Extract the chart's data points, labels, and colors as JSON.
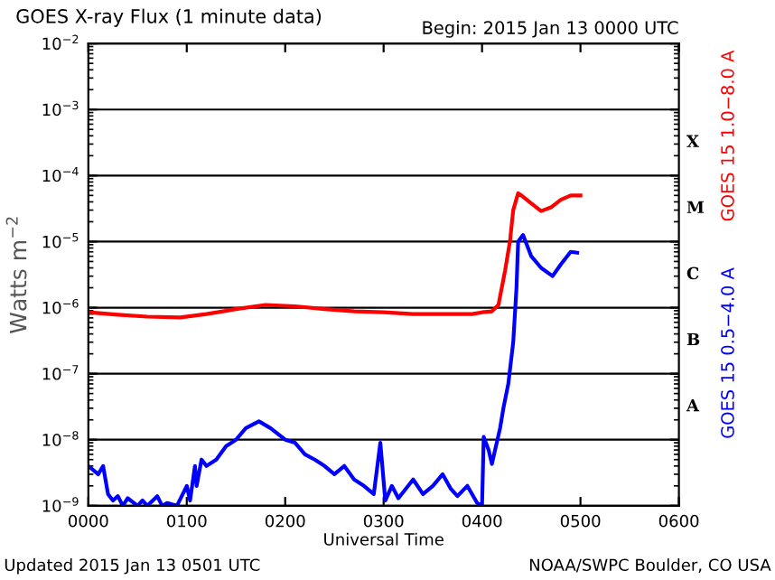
{
  "chart_data": {
    "type": "line",
    "title": "GOES X-ray Flux (1 minute data)",
    "subtitle": "Begin: 2015 Jan 13 0000 UTC",
    "xlabel": "Universal Time",
    "ylabel": "Watts m$^{−2}$",
    "log": "y",
    "grid": "y",
    "legend": false,
    "xlim": [
      "2015-01-13T00:00",
      "2015-01-13T06:00"
    ],
    "xticks": [
      {
        "value": "2015-01-13T00:00",
        "label": "0000"
      },
      {
        "value": "2015-01-13T01:00",
        "label": "0100"
      },
      {
        "value": "2015-01-13T02:00",
        "label": "0200"
      },
      {
        "value": "2015-01-13T03:00",
        "label": "0300"
      },
      {
        "value": "2015-01-13T04:00",
        "label": "0400"
      },
      {
        "value": "2015-01-13T05:00",
        "label": "0500"
      },
      {
        "value": "2015-01-13T06:00",
        "label": "0600"
      }
    ],
    "ylim": [
      1e-09,
      0.01
    ],
    "yticks": [
      {
        "value": 1e-09,
        "label": "10$^{−9}$"
      },
      {
        "value": 1e-08,
        "label": "10$^{−8}$"
      },
      {
        "value": 1e-07,
        "label": "10$^{−7}$"
      },
      {
        "value": 1e-06,
        "label": "10$^{−6}$"
      },
      {
        "value": 1e-05,
        "label": "10$^{−5}$"
      },
      {
        "value": 0.0001,
        "label": "10$^{−4}$"
      },
      {
        "value": 0.001,
        "label": "10$^{−3}$"
      },
      {
        "value": 0.01,
        "label": "10$^{−2}$"
      }
    ],
    "series": [
      {
        "name": "GOES 15 1.0−8.0 A",
        "color": "#ff0000",
        "x": [
          "2015-01-13T00:00",
          "2015-01-13T00:18",
          "2015-01-13T00:36",
          "2015-01-13T00:56",
          "2015-01-13T01:12",
          "2015-01-13T01:30",
          "2015-01-13T01:48",
          "2015-01-13T02:06",
          "2015-01-13T02:24",
          "2015-01-13T02:42",
          "2015-01-13T03:00",
          "2015-01-13T03:18",
          "2015-01-13T03:36",
          "2015-01-13T03:54",
          "2015-01-13T04:00",
          "2015-01-13T04:06",
          "2015-01-13T04:10",
          "2015-01-13T04:14",
          "2015-01-13T04:17",
          "2015-01-13T04:19",
          "2015-01-13T04:22",
          "2015-01-13T04:24",
          "2015-01-13T04:30",
          "2015-01-13T04:36",
          "2015-01-13T04:42",
          "2015-01-13T04:48",
          "2015-01-13T04:54",
          "2015-01-13T05:00"
        ],
        "values": [
          8.5e-07,
          7.8e-07,
          7.3e-07,
          7.1e-07,
          8e-07,
          9.5e-07,
          1.1e-06,
          1.05e-06,
          9.5e-07,
          8.8e-07,
          8.5e-07,
          8e-07,
          8e-07,
          8e-07,
          8.5e-07,
          8.8e-07,
          1.1e-06,
          3.6e-06,
          1e-05,
          3e-05,
          5.4e-05,
          5e-05,
          3.8e-05,
          2.9e-05,
          3.3e-05,
          4.3e-05,
          5e-05,
          5e-05
        ]
      },
      {
        "name": "GOES 15 0.5−4.0 A",
        "color": "#0000ff",
        "x": [
          "2015-01-13T00:00",
          "2015-01-13T00:06",
          "2015-01-13T00:09",
          "2015-01-13T00:12",
          "2015-01-13T00:15",
          "2015-01-13T00:18",
          "2015-01-13T00:21",
          "2015-01-13T00:24",
          "2015-01-13T00:30",
          "2015-01-13T00:33",
          "2015-01-13T00:36",
          "2015-01-13T00:42",
          "2015-01-13T00:45",
          "2015-01-13T00:48",
          "2015-01-13T00:54",
          "2015-01-13T01:00",
          "2015-01-13T01:02",
          "2015-01-13T01:05",
          "2015-01-13T01:06",
          "2015-01-13T01:09",
          "2015-01-13T01:12",
          "2015-01-13T01:18",
          "2015-01-13T01:24",
          "2015-01-13T01:30",
          "2015-01-13T01:36",
          "2015-01-13T01:44",
          "2015-01-13T01:51",
          "2015-01-13T02:00",
          "2015-01-13T02:06",
          "2015-01-13T02:12",
          "2015-01-13T02:18",
          "2015-01-13T02:24",
          "2015-01-13T02:30",
          "2015-01-13T02:36",
          "2015-01-13T02:42",
          "2015-01-13T02:48",
          "2015-01-13T02:54",
          "2015-01-13T02:58",
          "2015-01-13T03:01",
          "2015-01-13T03:05",
          "2015-01-13T03:09",
          "2015-01-13T03:18",
          "2015-01-13T03:24",
          "2015-01-13T03:30",
          "2015-01-13T03:36",
          "2015-01-13T03:41",
          "2015-01-13T03:45",
          "2015-01-13T03:51",
          "2015-01-13T03:57",
          "2015-01-13T04:00",
          "2015-01-13T04:01",
          "2015-01-13T04:04",
          "2015-01-13T04:06",
          "2015-01-13T04:11",
          "2015-01-13T04:13",
          "2015-01-13T04:16",
          "2015-01-13T04:19",
          "2015-01-13T04:21",
          "2015-01-13T04:22",
          "2015-01-13T04:25",
          "2015-01-13T04:30",
          "2015-01-13T04:36",
          "2015-01-13T04:43",
          "2015-01-13T04:48",
          "2015-01-13T04:54",
          "2015-01-13T04:58"
        ],
        "values": [
          4e-09,
          3e-09,
          4e-09,
          1.5e-09,
          1.2e-09,
          1.4e-09,
          1e-09,
          1.3e-09,
          1e-09,
          1.2e-09,
          1e-09,
          1.4e-09,
          1e-09,
          1.1e-09,
          1e-09,
          2e-09,
          1.2e-09,
          4e-09,
          2e-09,
          5e-09,
          4e-09,
          5e-09,
          8e-09,
          1e-08,
          1.5e-08,
          1.9e-08,
          1.5e-08,
          1e-08,
          9e-09,
          6e-09,
          5e-09,
          4e-09,
          3e-09,
          4e-09,
          2.5e-09,
          2e-09,
          1.5e-09,
          9e-09,
          1.2e-09,
          2e-09,
          1.3e-09,
          2.5e-09,
          1.5e-09,
          2e-09,
          3e-09,
          1.8e-09,
          1.4e-09,
          2e-09,
          1.1e-09,
          1e-09,
          1.1e-08,
          7e-09,
          4.3e-09,
          1.5e-08,
          3e-08,
          7e-08,
          3e-07,
          2e-06,
          1e-05,
          1.26e-05,
          6e-06,
          4e-06,
          3e-06,
          4.5e-06,
          7e-06,
          6.8e-06
        ]
      }
    ],
    "annotations": [
      "X",
      "M",
      "C",
      "B",
      "A",
      "Updated 2015 Jan 13 0501 UTC",
      "NOAA/SWPC Boulder, CO USA"
    ]
  }
}
